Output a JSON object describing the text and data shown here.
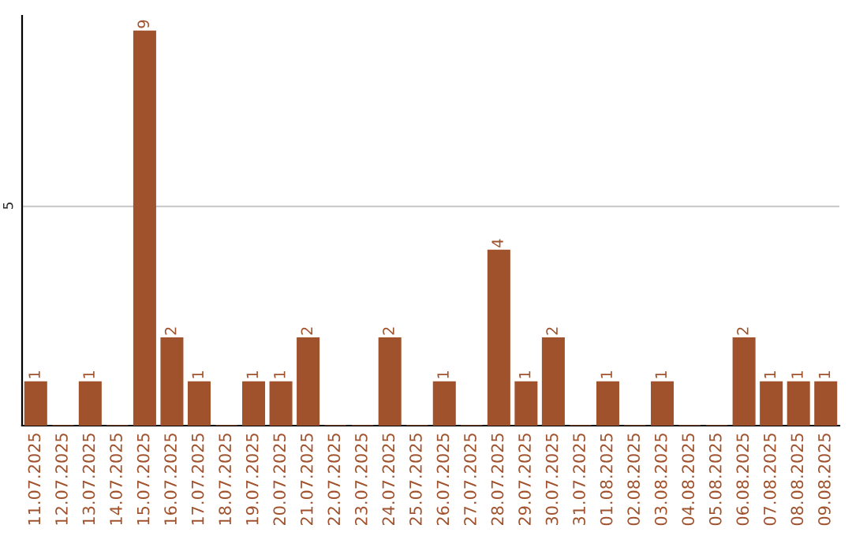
{
  "chart_data": {
    "type": "bar",
    "categories": [
      "11.07.2025",
      "12.07.2025",
      "13.07.2025",
      "14.07.2025",
      "15.07.2025",
      "16.07.2025",
      "17.07.2025",
      "18.07.2025",
      "19.07.2025",
      "20.07.2025",
      "21.07.2025",
      "22.07.2025",
      "23.07.2025",
      "24.07.2025",
      "25.07.2025",
      "26.07.2025",
      "27.07.2025",
      "28.07.2025",
      "29.07.2025",
      "30.07.2025",
      "31.07.2025",
      "01.08.2025",
      "02.08.2025",
      "03.08.2025",
      "04.08.2025",
      "05.08.2025",
      "06.08.2025",
      "07.08.2025",
      "08.08.2025",
      "09.08.2025"
    ],
    "values": [
      1,
      0,
      1,
      0,
      9,
      2,
      1,
      0,
      1,
      1,
      2,
      0,
      0,
      2,
      0,
      1,
      0,
      4,
      1,
      2,
      0,
      1,
      0,
      1,
      0,
      0,
      2,
      1,
      1,
      1
    ],
    "value_labels": [
      "1",
      null,
      "1",
      null,
      "9",
      "2",
      "1",
      null,
      "1",
      "1",
      "2",
      null,
      null,
      "2",
      null,
      "1",
      null,
      "4",
      "1",
      "2",
      null,
      "1",
      null,
      "1",
      null,
      null,
      "2",
      "1",
      "1",
      "1"
    ],
    "color": "#a0522d",
    "ylim": [
      0,
      9.35
    ],
    "yticks": [
      5
    ],
    "grid": "y"
  }
}
